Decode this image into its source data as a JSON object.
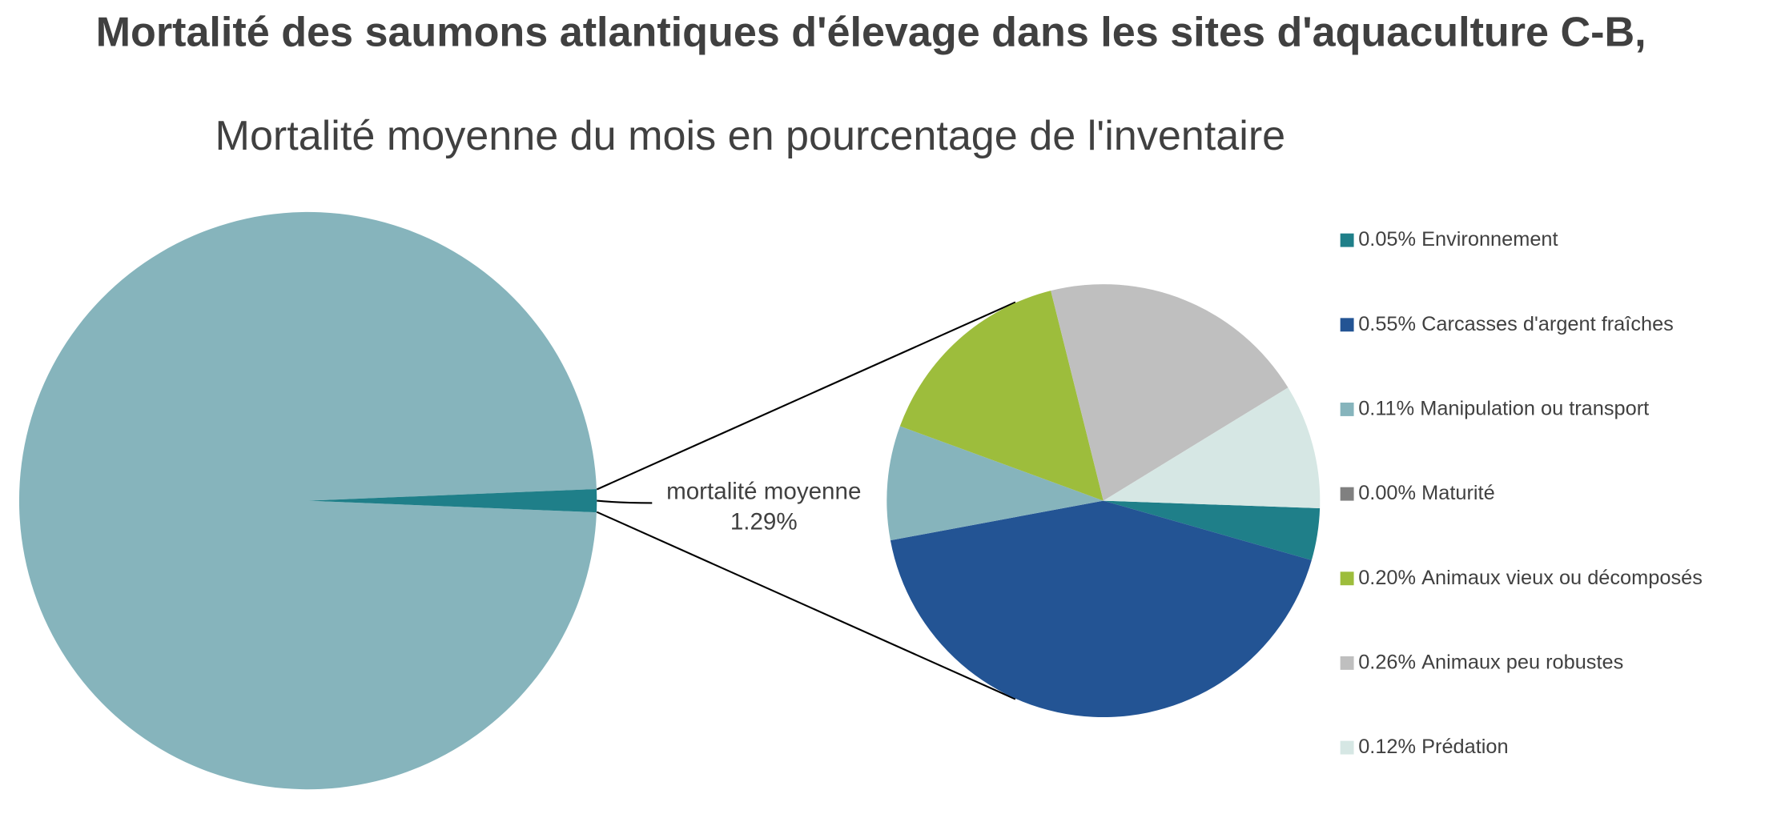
{
  "chart_data": {
    "type": "pie-of-pie",
    "title": "Mortalité des saumons atlantiques d'élevage dans les sites d'aquaculture C-B,",
    "subtitle": "Mortalité moyenne du mois en pourcentage de l'inventaire",
    "main": {
      "values": [
        98.71,
        1.29
      ],
      "colors": [
        "#86b4bc",
        "#1f7f89"
      ],
      "label": "mortalité moyenne",
      "value_label": "1.29%"
    },
    "categories": [
      "Environnement",
      "Carcasses d'argent fraîches",
      "Manipulation ou transport",
      "Maturité",
      "Animaux vieux ou décomposés",
      "Animaux peu robustes",
      "Prédation"
    ],
    "values": [
      0.05,
      0.55,
      0.11,
      0.0,
      0.2,
      0.26,
      0.12
    ],
    "value_labels": [
      "0.05%",
      "0.55%",
      "0.11%",
      "0.00%",
      "0.20%",
      "0.26%",
      "0.12%"
    ],
    "colors": [
      "#1f7f89",
      "#235494",
      "#86b4bc",
      "#808080",
      "#9dbd3c",
      "#bfbfbf",
      "#d6e7e4"
    ]
  }
}
